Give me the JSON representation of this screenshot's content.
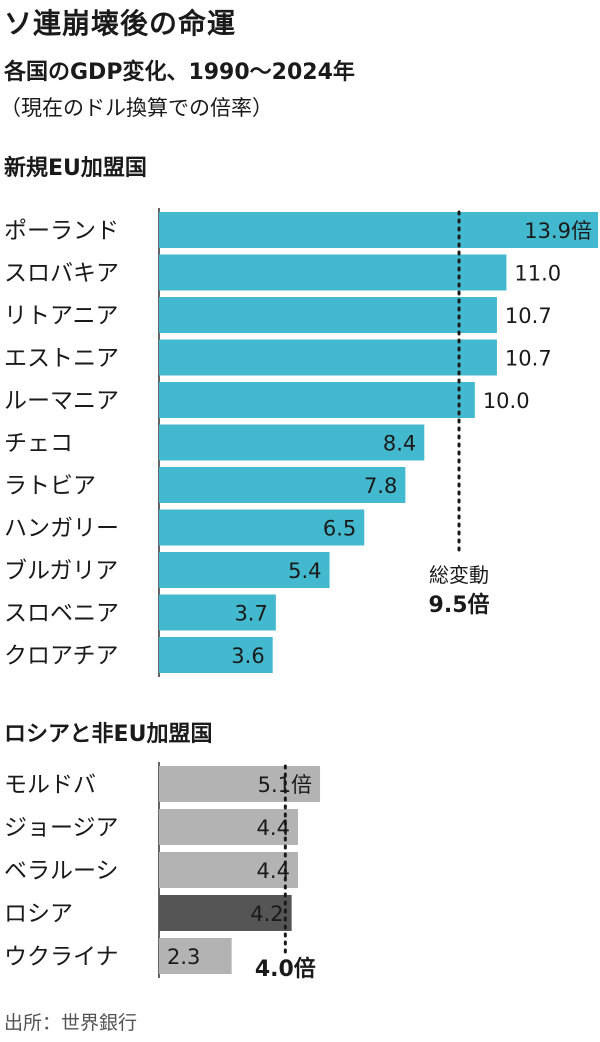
{
  "title": "ソ連崩壊後の命運",
  "subtitle": "各国のGDP変化、1990～2024年",
  "note": "（現在のドル換算での倍率）",
  "source": "出所：世界銀行",
  "colors": {
    "eu_bar": "#43b9cf",
    "non_eu_bar": "#b3b3b3",
    "russia_bar": "#555555"
  },
  "chart_data": [
    {
      "type": "bar",
      "orientation": "horizontal",
      "section_title": "新規EU加盟国",
      "unit": "倍",
      "categories": [
        "ポーランド",
        "スロバキア",
        "リトアニア",
        "エストニア",
        "ルーマニア",
        "チェコ",
        "ラトビア",
        "ハンガリー",
        "ブルガリア",
        "スロベニア",
        "クロアチア"
      ],
      "values": [
        13.9,
        11.0,
        10.7,
        10.7,
        10.0,
        8.4,
        7.8,
        6.5,
        5.4,
        3.7,
        3.6
      ],
      "value_labels": [
        "13.9倍",
        "11.0",
        "10.7",
        "10.7",
        "10.0",
        "8.4",
        "7.8",
        "6.5",
        "5.4",
        "3.7",
        "3.6"
      ],
      "reference": {
        "label": "総変動",
        "value": 9.5,
        "value_label": "9.5倍"
      }
    },
    {
      "type": "bar",
      "orientation": "horizontal",
      "section_title": "ロシアと非EU加盟国",
      "unit": "倍",
      "categories": [
        "モルドバ",
        "ジョージア",
        "ベラルーシ",
        "ロシア",
        "ウクライナ"
      ],
      "values": [
        5.1,
        4.4,
        4.4,
        4.2,
        2.3
      ],
      "value_labels": [
        "5.1倍",
        "4.4",
        "4.4",
        "4.2",
        "2.3"
      ],
      "highlight": "ロシア",
      "reference": {
        "label": "",
        "value": 4.0,
        "value_label": "4.0倍"
      }
    }
  ]
}
